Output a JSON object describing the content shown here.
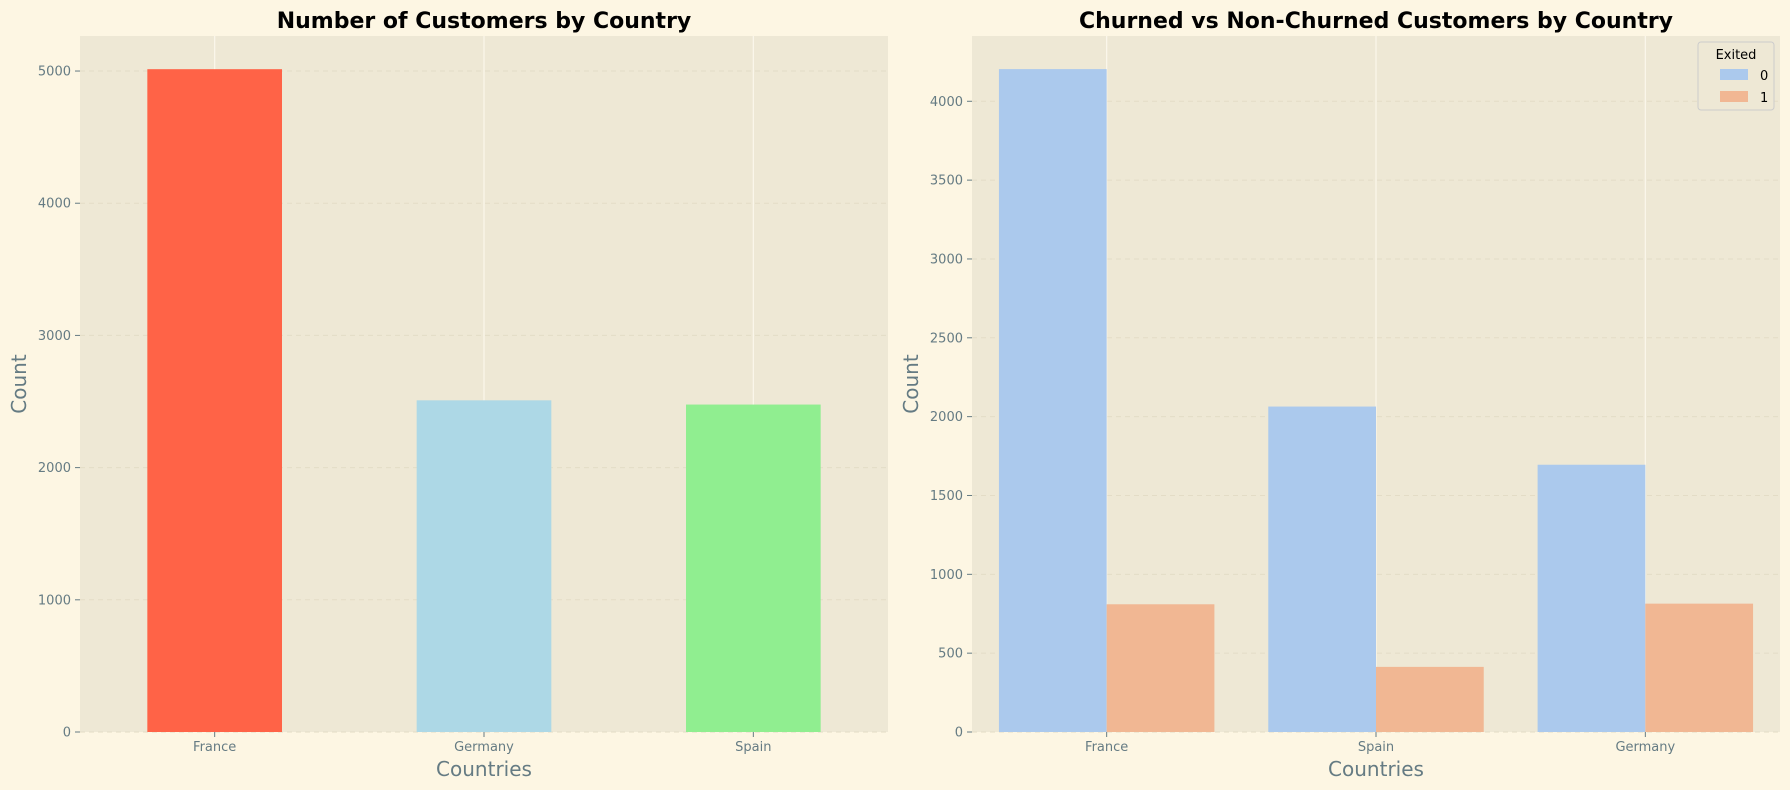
{
  "chart_data": [
    {
      "type": "bar",
      "title": "Number of Customers by Country",
      "xlabel": "Countries",
      "ylabel": "Count",
      "categories": [
        "France",
        "Germany",
        "Spain"
      ],
      "values": [
        5014,
        2509,
        2477
      ],
      "colors": [
        "#ff6347",
        "#add8e6",
        "#90ee90"
      ],
      "ylim": [
        0,
        5265
      ],
      "yticks": [
        0,
        1000,
        2000,
        3000,
        4000,
        5000
      ],
      "grid": true
    },
    {
      "type": "bar",
      "title": "Churned vs Non-Churned Customers by Country",
      "xlabel": "Countries",
      "ylabel": "Count",
      "categories": [
        "France",
        "Spain",
        "Germany"
      ],
      "series": [
        {
          "name": "0",
          "values": [
            4204,
            2064,
            1695
          ],
          "color": "#abc9ed"
        },
        {
          "name": "1",
          "values": [
            810,
            413,
            814
          ],
          "color": "#f1b793"
        }
      ],
      "legend": {
        "title": "Exited",
        "placement": "top-right"
      },
      "ylim": [
        0,
        4414
      ],
      "yticks": [
        0,
        500,
        1000,
        1500,
        2000,
        2500,
        3000,
        3500,
        4000
      ],
      "grid": true
    }
  ]
}
